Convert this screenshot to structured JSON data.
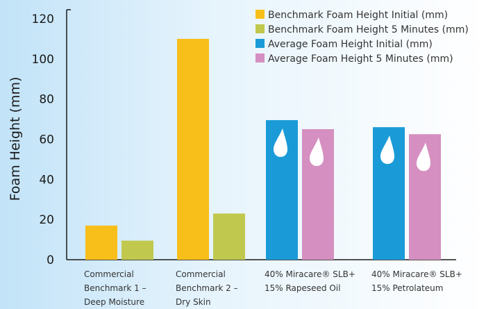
{
  "chart_data": {
    "type": "bar",
    "ylabel": "Foam Height (mm)",
    "ylim": [
      0,
      120
    ],
    "yticks": [
      0,
      20,
      40,
      60,
      80,
      100,
      120
    ],
    "grid": false,
    "legend_position": "top-right",
    "groups": [
      {
        "label_lines": [
          "Commercial",
          "Benchmark 1 –",
          "Deep Moisture"
        ],
        "series": [
          0,
          1
        ]
      },
      {
        "label_lines": [
          "Commercial",
          "Benchmark 2 –",
          "Dry Skin"
        ],
        "series": [
          0,
          1
        ]
      },
      {
        "label_lines": [
          "40% Miracare® SLB+",
          "15% Rapeseed Oil"
        ],
        "series": [
          2,
          3
        ]
      },
      {
        "label_lines": [
          "40% Miracare® SLB+",
          "15% Petrolateum"
        ],
        "series": [
          2,
          3
        ]
      }
    ],
    "series": [
      {
        "name": "Benchmark Foam Height Initial (mm)",
        "color": "#f8bf1a",
        "values": [
          17,
          110,
          null,
          null
        ]
      },
      {
        "name": "Benchmark Foam Height 5 Minutes (mm)",
        "color": "#c0c84e",
        "values": [
          9.5,
          23,
          null,
          null
        ]
      },
      {
        "name": "Average Foam Height Initial (mm)",
        "color": "#1a9bd7",
        "values": [
          null,
          null,
          69.5,
          66
        ]
      },
      {
        "name": "Average Foam Height 5 Minutes (mm)",
        "color": "#d58fc0",
        "values": [
          null,
          null,
          65,
          62.5
        ]
      }
    ],
    "drop_icon": "water-drop-icon"
  }
}
